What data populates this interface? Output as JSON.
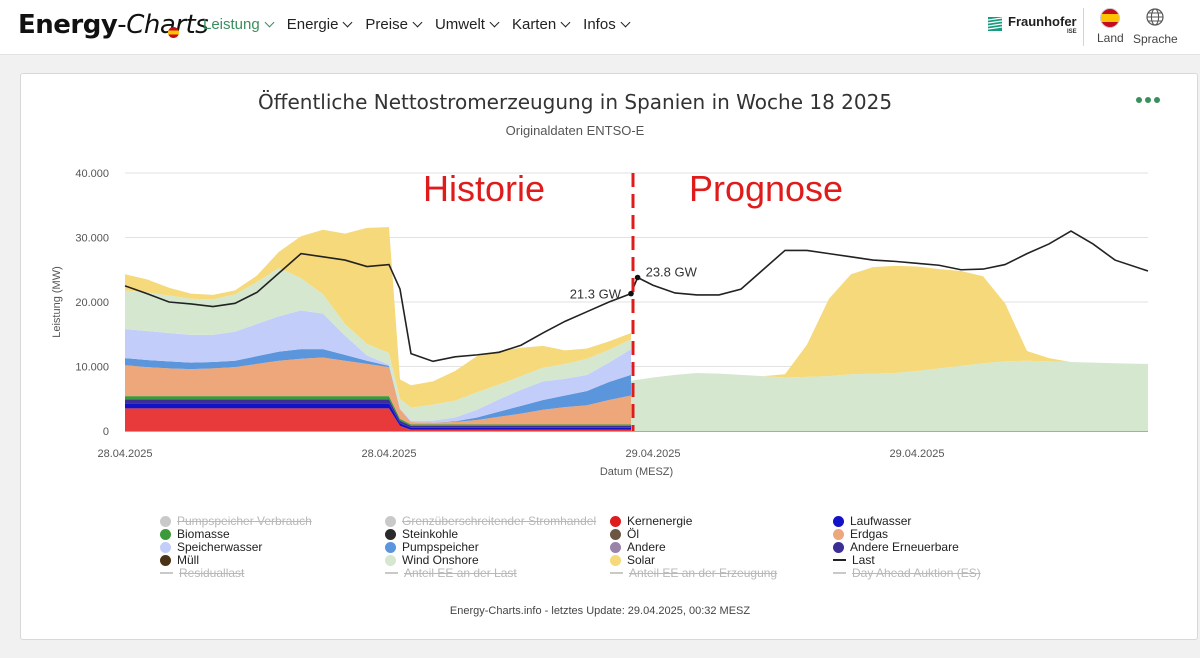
{
  "header": {
    "logo_main": "Energy",
    "logo_sep": "-",
    "logo_italic": "Charts",
    "nav": [
      "Leistung",
      "Energie",
      "Preise",
      "Umwelt",
      "Karten",
      "Infos"
    ],
    "brand": "Fraunhofer",
    "brand_sub": "ISE",
    "country_label": "Land",
    "language_label": "Sprache"
  },
  "colors": {
    "accent": "#3a8f5c",
    "solar": "#f5d97a",
    "wind": "#d5e8cf",
    "speicherwasser": "#c3cdfa",
    "pumpspeicher": "#5b95dc",
    "erdgas": "#eda77a",
    "biomasse": "#3c9a3c",
    "andere_ee": "#3b2f96",
    "laufwasser": "#1212c8",
    "kernenergie": "#e83a3a",
    "last": "#222222",
    "annotation": "#e01b1b"
  },
  "chart_data": {
    "type": "area",
    "title": "Öffentliche Nettostromerzeugung in Spanien in Woche 18 2025",
    "subtitle": "Originaldaten ENTSO-E",
    "xlabel": "Datum (MESZ)",
    "ylabel": "Leistung (MW)",
    "ylim": [
      0,
      40000
    ],
    "yticks": [
      "0",
      "10.000",
      "20.000",
      "30.000",
      "40.000"
    ],
    "xticks": [
      "28.04.2025",
      "28.04.2025",
      "29.04.2025",
      "29.04.2025"
    ],
    "xtick_hours": [
      0,
      12,
      24,
      36
    ],
    "x_range_hours": [
      0,
      46.5
    ],
    "history_end_hour": 23.0,
    "annotations": {
      "historie": "Historie",
      "prognose": "Prognose",
      "point_last_history": {
        "hour": 23.0,
        "value": 21300,
        "label": "21.3 GW"
      },
      "point_first_forecast": {
        "hour": 23.3,
        "value": 23800,
        "label": "23.8 GW"
      }
    },
    "history_hours": [
      0,
      1,
      2,
      3,
      4,
      5,
      6,
      7,
      8,
      9,
      10,
      11,
      12,
      12.5,
      13,
      14,
      15,
      16,
      17,
      18,
      19,
      20,
      21,
      22,
      23
    ],
    "series": [
      {
        "name": "Kernenergie",
        "color": "#e83a3a",
        "values": [
          3500,
          3500,
          3500,
          3500,
          3500,
          3500,
          3500,
          3500,
          3500,
          3500,
          3500,
          3500,
          3500,
          800,
          200,
          200,
          200,
          200,
          200,
          200,
          200,
          200,
          200,
          200,
          200
        ]
      },
      {
        "name": "Laufwasser",
        "color": "#1212c8",
        "values": [
          800,
          800,
          800,
          800,
          800,
          800,
          800,
          800,
          800,
          800,
          800,
          800,
          800,
          400,
          300,
          300,
          300,
          300,
          300,
          300,
          300,
          300,
          300,
          300,
          300
        ]
      },
      {
        "name": "Andere Erneuerbare",
        "color": "#3b2f96",
        "values": [
          600,
          600,
          600,
          600,
          600,
          600,
          600,
          600,
          600,
          600,
          600,
          600,
          600,
          400,
          300,
          300,
          300,
          300,
          300,
          300,
          300,
          300,
          300,
          300,
          300
        ]
      },
      {
        "name": "Biomasse",
        "color": "#3c9a3c",
        "values": [
          500,
          500,
          500,
          500,
          500,
          500,
          500,
          500,
          500,
          500,
          500,
          500,
          500,
          300,
          200,
          200,
          200,
          200,
          200,
          200,
          200,
          200,
          200,
          200,
          200
        ]
      },
      {
        "name": "Erdgas",
        "color": "#eda77a",
        "values": [
          4800,
          4500,
          4300,
          4200,
          4300,
          4500,
          5000,
          5500,
          5800,
          6000,
          5500,
          5000,
          4500,
          1500,
          400,
          300,
          400,
          700,
          1200,
          1700,
          2300,
          2700,
          3000,
          3800,
          4500
        ]
      },
      {
        "name": "Pumpspeicher",
        "color": "#5b95dc",
        "values": [
          1100,
          1100,
          1100,
          1000,
          1000,
          1000,
          1200,
          1400,
          1500,
          1300,
          900,
          500,
          200,
          0,
          0,
          0,
          100,
          400,
          800,
          1200,
          1500,
          1800,
          2200,
          2800,
          3200
        ]
      },
      {
        "name": "Speicherwasser",
        "color": "#c3cdfa",
        "values": [
          4500,
          4500,
          4400,
          4300,
          4200,
          4500,
          5000,
          5500,
          6000,
          5500,
          3000,
          800,
          200,
          100,
          200,
          300,
          600,
          1200,
          1900,
          2500,
          2900,
          2600,
          2500,
          3000,
          4000
        ]
      },
      {
        "name": "Wind Onshore",
        "color": "#d5e8cf",
        "values": [
          6000,
          6000,
          5800,
          5600,
          5500,
          5800,
          6500,
          7500,
          5000,
          3000,
          1800,
          1800,
          1800,
          1500,
          2000,
          2500,
          2600,
          2700,
          2300,
          2100,
          2100,
          2300,
          2500,
          2000,
          1500
        ]
      },
      {
        "name": "Solar",
        "color": "#f5d97a",
        "values": [
          2500,
          2000,
          1200,
          800,
          700,
          600,
          1000,
          2500,
          6500,
          10000,
          14000,
          18000,
          19500,
          3000,
          3500,
          3600,
          4600,
          5600,
          5200,
          4400,
          3400,
          2100,
          1600,
          1300,
          1000
        ]
      }
    ],
    "forecast": {
      "hours": [
        23,
        24,
        25,
        26,
        27,
        28,
        29,
        30,
        31,
        32,
        33,
        34,
        35,
        36,
        37,
        38,
        39,
        40,
        41,
        42,
        43,
        44,
        45,
        46.5
      ],
      "wind_onshore": [
        7800,
        8300,
        8700,
        9000,
        8900,
        8700,
        8500,
        8300,
        8400,
        8500,
        8800,
        8900,
        9000,
        9300,
        9700,
        10100,
        10500,
        10800,
        10900,
        10800,
        10700,
        10600,
        10500,
        10400
      ],
      "solar": [
        0,
        0,
        0,
        0,
        0,
        0,
        0,
        500,
        5000,
        12000,
        15500,
        16500,
        16600,
        16200,
        15400,
        14700,
        13500,
        9000,
        1500,
        500,
        0,
        0,
        0,
        0
      ]
    },
    "last": {
      "hours": [
        0,
        1,
        2,
        3,
        4,
        5,
        6,
        7,
        8,
        9,
        10,
        11,
        12,
        12.5,
        13,
        14,
        15,
        16,
        17,
        18,
        19,
        20,
        21,
        22,
        23,
        23.3,
        24,
        25,
        26,
        27,
        28,
        29,
        30,
        31,
        32,
        33,
        34,
        35,
        36,
        37,
        38,
        39,
        40,
        41,
        42,
        43,
        44,
        45,
        46.5
      ],
      "values": [
        22500,
        21300,
        20000,
        19700,
        19300,
        19800,
        21500,
        24500,
        27500,
        27000,
        26500,
        25500,
        25800,
        22000,
        12000,
        10800,
        11500,
        11800,
        12200,
        13300,
        15200,
        17000,
        18500,
        20000,
        21300,
        23800,
        22600,
        21400,
        21100,
        21100,
        22000,
        25000,
        28000,
        28000,
        27500,
        27000,
        26500,
        26300,
        26000,
        25700,
        25000,
        25100,
        25800,
        27500,
        29000,
        31000,
        29000,
        26500,
        24800
      ]
    }
  },
  "legend": [
    {
      "label": "Pumpspeicher Verbrauch",
      "color": "#c9c9c9",
      "shape": "dot",
      "off": true
    },
    {
      "label": "Grenzüberschreitender Stromhandel",
      "color": "#c9c9c9",
      "shape": "dot",
      "off": true
    },
    {
      "label": "Kernenergie",
      "color": "#e01b1b",
      "shape": "dot",
      "off": false
    },
    {
      "label": "Laufwasser",
      "color": "#1212c8",
      "shape": "dot",
      "off": false
    },
    {
      "label": "Biomasse",
      "color": "#3c9a3c",
      "shape": "dot",
      "off": false
    },
    {
      "label": "Steinkohle",
      "color": "#2a2a2a",
      "shape": "dot",
      "off": false
    },
    {
      "label": "Öl",
      "color": "#6b5644",
      "shape": "dot",
      "off": false
    },
    {
      "label": "Erdgas",
      "color": "#eda77a",
      "shape": "dot",
      "off": false
    },
    {
      "label": "Speicherwasser",
      "color": "#c3cdfa",
      "shape": "dot",
      "off": false
    },
    {
      "label": "Pumpspeicher",
      "color": "#5b95dc",
      "shape": "dot",
      "off": false
    },
    {
      "label": "Andere",
      "color": "#9a82a9",
      "shape": "dot",
      "off": false
    },
    {
      "label": "Andere Erneuerbare",
      "color": "#3b2f96",
      "shape": "dot",
      "off": false
    },
    {
      "label": "Müll",
      "color": "#4a3216",
      "shape": "dot",
      "off": false
    },
    {
      "label": "Wind Onshore",
      "color": "#d5e8cf",
      "shape": "dot",
      "off": false
    },
    {
      "label": "Solar",
      "color": "#f5d97a",
      "shape": "dot",
      "off": false
    },
    {
      "label": "Last",
      "color": "#222222",
      "shape": "line",
      "off": false
    },
    {
      "label": "Residuallast",
      "color": "#c9c9c9",
      "shape": "line",
      "off": true
    },
    {
      "label": "Anteil EE an der Last",
      "color": "#c9c9c9",
      "shape": "line",
      "off": true
    },
    {
      "label": "Anteil EE an der Erzeugung",
      "color": "#c9c9c9",
      "shape": "line",
      "off": true
    },
    {
      "label": "Day Ahead Auktion (ES)",
      "color": "#c9c9c9",
      "shape": "line",
      "off": true
    }
  ],
  "footer": "Energy-Charts.info - letztes Update: 29.04.2025, 00:32 MESZ"
}
